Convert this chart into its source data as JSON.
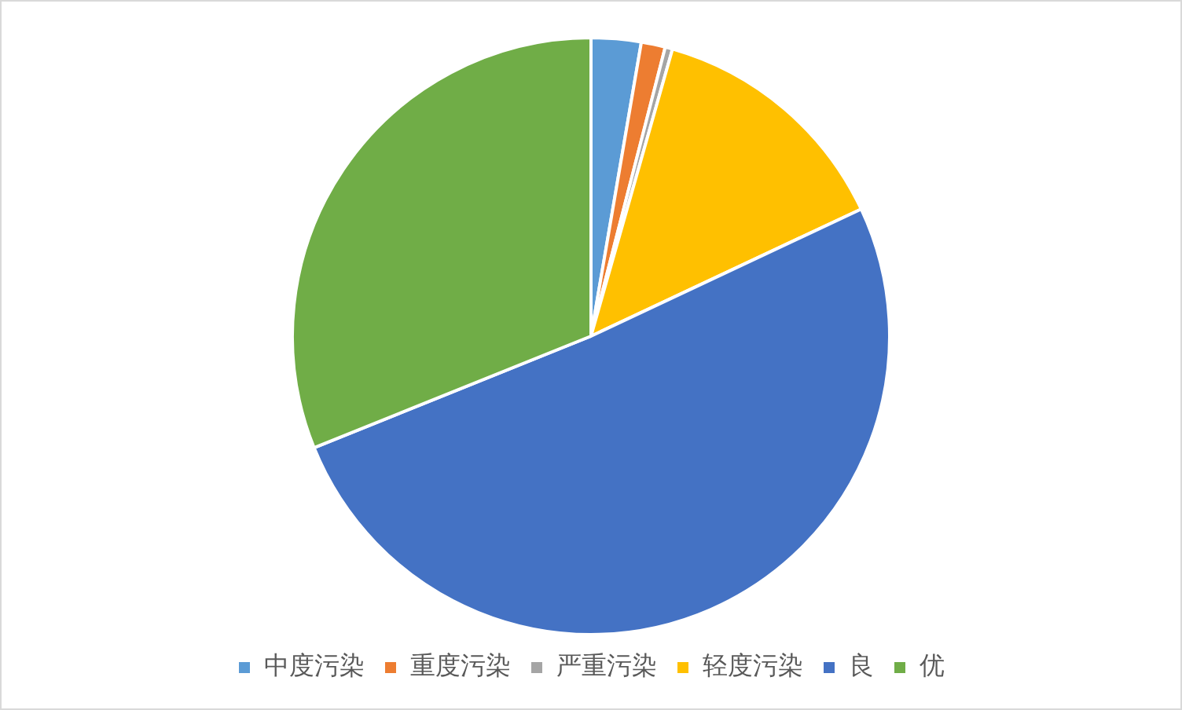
{
  "chart_data": {
    "type": "pie",
    "categories": [
      "中度污染",
      "重度污染",
      "严重污染",
      "轻度污染",
      "良",
      "优"
    ],
    "values": [
      2.7,
      1.3,
      0.4,
      13.6,
      50.9,
      31.1
    ],
    "colors": [
      "#5b9bd5",
      "#ed7d31",
      "#a5a5a5",
      "#ffc000",
      "#4472c4",
      "#70ad47"
    ],
    "legend": "bottom"
  }
}
